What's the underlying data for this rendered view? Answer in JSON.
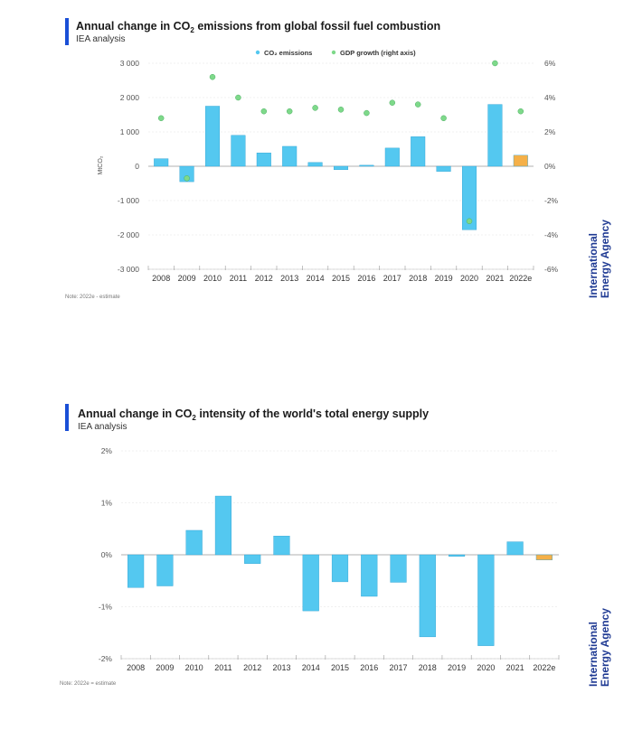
{
  "brand": {
    "line1": "International",
    "line2": "Energy Agency"
  },
  "colors": {
    "accent": "#1a4fd6",
    "bar": "#54c8f0",
    "estimate_bar": "#f5b048",
    "gdp_dot": "#7ed98a"
  },
  "chart_data": [
    {
      "type": "bar",
      "title_pre": "Annual change in CO",
      "title_sub": "2",
      "title_post": " emissions from global fossil fuel combustion",
      "subtitle": "IEA analysis",
      "note": "Note: 2022e - estimate",
      "ylabel": "MtCO₂",
      "categories": [
        "2008",
        "2009",
        "2010",
        "2011",
        "2012",
        "2013",
        "2014",
        "2015",
        "2016",
        "2017",
        "2018",
        "2019",
        "2020",
        "2021",
        "2022e"
      ],
      "ylim": [
        -3000,
        3000
      ],
      "yticks": [
        -3000,
        -2000,
        -1000,
        0,
        1000,
        2000,
        3000
      ],
      "ytick_labels": [
        "-3 000",
        "-2 000",
        "-1 000",
        "0",
        "1 000",
        "2 000",
        "3 000"
      ],
      "y2lim": [
        -6,
        6
      ],
      "y2ticks": [
        -6,
        -4,
        -2,
        0,
        2,
        4,
        6
      ],
      "y2tick_labels": [
        "-6%",
        "-4%",
        "-2%",
        "0%",
        "2%",
        "4%",
        "6%"
      ],
      "series": [
        {
          "name": "CO₂ emissions",
          "kind": "bar",
          "values": [
            220,
            -450,
            1750,
            900,
            390,
            580,
            110,
            -100,
            30,
            530,
            860,
            -150,
            -1850,
            1800,
            320
          ],
          "estimate_index": 14
        },
        {
          "name": "GDP growth (right axis)",
          "kind": "scatter",
          "axis": "right",
          "values": [
            2.8,
            -0.7,
            5.2,
            4.0,
            3.2,
            3.2,
            3.4,
            3.3,
            3.1,
            3.7,
            3.6,
            2.8,
            -3.2,
            6.0,
            3.2
          ]
        }
      ],
      "legend": "top-center"
    },
    {
      "type": "bar",
      "title_pre": "Annual change in CO",
      "title_sub": "2",
      "title_post": " intensity of the world's total energy supply",
      "subtitle": "IEA analysis",
      "note": "Note: 2022e = estimate",
      "categories": [
        "2008",
        "2009",
        "2010",
        "2011",
        "2012",
        "2013",
        "2014",
        "2015",
        "2016",
        "2017",
        "2018",
        "2019",
        "2020",
        "2021",
        "2022e"
      ],
      "ylim": [
        -2,
        2
      ],
      "yticks": [
        -2,
        -1,
        0,
        1,
        2
      ],
      "ytick_labels": [
        "-2%",
        "-1%",
        "0%",
        "1%",
        "2%"
      ],
      "series": [
        {
          "name": "",
          "kind": "bar",
          "values": [
            -0.63,
            -0.6,
            0.47,
            1.13,
            -0.17,
            0.36,
            -1.08,
            -0.52,
            -0.8,
            -0.53,
            -1.58,
            -0.03,
            -1.75,
            0.25,
            -0.1
          ],
          "estimate_index": 14
        }
      ]
    }
  ]
}
